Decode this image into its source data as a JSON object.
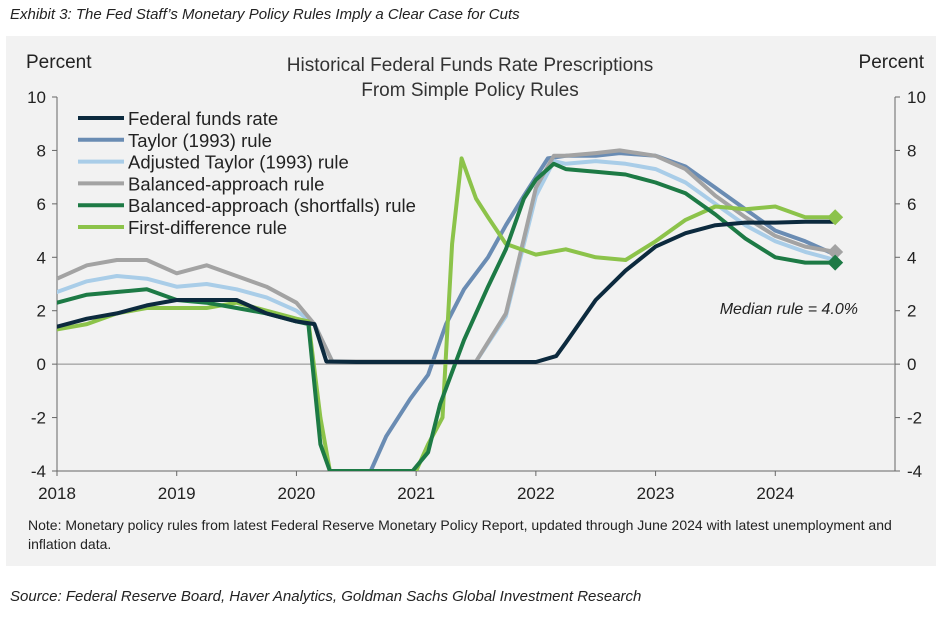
{
  "exhibit_title": "Exhibit 3: The Fed Staff’s Monetary Policy Rules Imply a Clear Case for Cuts",
  "source_text": "Source: Federal Reserve Board, Haver Analytics, Goldman Sachs Global Investment Research",
  "colors": {
    "panel_bg": "#f2f2f2",
    "ffr": "#0c2a3e",
    "taylor": "#6a8cb3",
    "adjusted_taylor": "#a9cde8",
    "balanced": "#a3a3a3",
    "balanced_shortfalls": "#1d7a45",
    "first_difference": "#8cc34a"
  },
  "chart_data": {
    "type": "line",
    "title": "Historical Federal Funds Rate Prescriptions",
    "subtitle": "From Simple Policy Rules",
    "ylabel_left": "Percent",
    "ylabel_right": "Percent",
    "xlim": [
      2018,
      2025
    ],
    "ylim": [
      -4,
      10
    ],
    "x_ticks": [
      "2018",
      "2019",
      "2020",
      "2021",
      "2022",
      "2023",
      "2024"
    ],
    "y_ticks": [
      "10",
      "8",
      "6",
      "4",
      "2",
      "0",
      "-2",
      "-4"
    ],
    "annotation": "Median rule = 4.0%",
    "note": "Note: Monetary policy rules from latest Federal Reserve Monetary Policy Report, updated through June 2024 with latest unemployment and inflation data.",
    "legend_position": "top-left",
    "series": [
      {
        "key": "ffr",
        "name": "Federal funds rate",
        "color": "#0c2a3e",
        "points": [
          [
            2018.0,
            1.4
          ],
          [
            2018.25,
            1.7
          ],
          [
            2018.5,
            1.9
          ],
          [
            2018.75,
            2.2
          ],
          [
            2019.0,
            2.4
          ],
          [
            2019.25,
            2.4
          ],
          [
            2019.5,
            2.4
          ],
          [
            2019.75,
            1.9
          ],
          [
            2020.0,
            1.6
          ],
          [
            2020.15,
            1.5
          ],
          [
            2020.25,
            0.1
          ],
          [
            2020.5,
            0.08
          ],
          [
            2021.0,
            0.08
          ],
          [
            2021.5,
            0.08
          ],
          [
            2022.0,
            0.08
          ],
          [
            2022.17,
            0.3
          ],
          [
            2022.25,
            0.8
          ],
          [
            2022.5,
            2.4
          ],
          [
            2022.75,
            3.5
          ],
          [
            2023.0,
            4.4
          ],
          [
            2023.25,
            4.9
          ],
          [
            2023.5,
            5.2
          ],
          [
            2023.75,
            5.3
          ],
          [
            2024.0,
            5.3
          ],
          [
            2024.25,
            5.33
          ],
          [
            2024.5,
            5.33
          ]
        ]
      },
      {
        "key": "taylor",
        "name": "Taylor (1993) rule",
        "color": "#6a8cb3",
        "points": [
          [
            2020.62,
            -4.0
          ],
          [
            2020.75,
            -2.7
          ],
          [
            2020.95,
            -1.3
          ],
          [
            2021.1,
            -0.4
          ],
          [
            2021.25,
            1.5
          ],
          [
            2021.4,
            2.8
          ],
          [
            2021.6,
            4.0
          ],
          [
            2021.75,
            5.2
          ],
          [
            2021.9,
            6.3
          ],
          [
            2022.0,
            7.0
          ],
          [
            2022.1,
            7.7
          ],
          [
            2022.25,
            7.8
          ],
          [
            2022.5,
            7.8
          ],
          [
            2022.7,
            7.9
          ],
          [
            2023.0,
            7.8
          ],
          [
            2023.25,
            7.4
          ],
          [
            2023.5,
            6.6
          ],
          [
            2023.75,
            5.8
          ],
          [
            2024.0,
            5.0
          ],
          [
            2024.25,
            4.6
          ],
          [
            2024.5,
            4.1
          ]
        ]
      },
      {
        "key": "adjusted_taylor",
        "name": "Adjusted Taylor (1993) rule",
        "color": "#a9cde8",
        "points": [
          [
            2018.0,
            2.7
          ],
          [
            2018.25,
            3.1
          ],
          [
            2018.5,
            3.3
          ],
          [
            2018.75,
            3.2
          ],
          [
            2019.0,
            2.9
          ],
          [
            2019.25,
            3.0
          ],
          [
            2019.5,
            2.8
          ],
          [
            2019.75,
            2.5
          ],
          [
            2020.0,
            2.0
          ],
          [
            2020.15,
            1.5
          ],
          [
            2020.3,
            0.1
          ],
          [
            2021.0,
            0.1
          ],
          [
            2021.5,
            0.1
          ],
          [
            2021.75,
            1.8
          ],
          [
            2021.9,
            4.5
          ],
          [
            2022.0,
            6.3
          ],
          [
            2022.15,
            7.6
          ],
          [
            2022.25,
            7.5
          ],
          [
            2022.5,
            7.6
          ],
          [
            2022.75,
            7.5
          ],
          [
            2023.0,
            7.3
          ],
          [
            2023.25,
            6.8
          ],
          [
            2023.5,
            6.0
          ],
          [
            2023.75,
            5.2
          ],
          [
            2024.0,
            4.6
          ],
          [
            2024.25,
            4.2
          ],
          [
            2024.5,
            3.9
          ]
        ]
      },
      {
        "key": "balanced",
        "name": "Balanced-approach rule",
        "color": "#a3a3a3",
        "points": [
          [
            2018.0,
            3.2
          ],
          [
            2018.25,
            3.7
          ],
          [
            2018.5,
            3.9
          ],
          [
            2018.75,
            3.9
          ],
          [
            2019.0,
            3.4
          ],
          [
            2019.25,
            3.7
          ],
          [
            2019.5,
            3.3
          ],
          [
            2019.75,
            2.9
          ],
          [
            2020.0,
            2.3
          ],
          [
            2020.15,
            1.5
          ],
          [
            2020.3,
            0.1
          ],
          [
            2021.0,
            0.1
          ],
          [
            2021.5,
            0.1
          ],
          [
            2021.75,
            1.9
          ],
          [
            2021.9,
            4.7
          ],
          [
            2022.0,
            6.6
          ],
          [
            2022.15,
            7.8
          ],
          [
            2022.25,
            7.8
          ],
          [
            2022.5,
            7.9
          ],
          [
            2022.7,
            8.0
          ],
          [
            2023.0,
            7.8
          ],
          [
            2023.25,
            7.3
          ],
          [
            2023.5,
            6.3
          ],
          [
            2023.75,
            5.5
          ],
          [
            2024.0,
            4.8
          ],
          [
            2024.25,
            4.4
          ],
          [
            2024.5,
            4.2
          ]
        ]
      },
      {
        "key": "balanced_shortfalls",
        "name": "Balanced-approach (shortfalls) rule",
        "color": "#1d7a45",
        "points": [
          [
            2018.0,
            2.3
          ],
          [
            2018.25,
            2.6
          ],
          [
            2018.5,
            2.7
          ],
          [
            2018.75,
            2.8
          ],
          [
            2019.0,
            2.4
          ],
          [
            2019.25,
            2.3
          ],
          [
            2019.5,
            2.1
          ],
          [
            2019.75,
            1.9
          ],
          [
            2020.0,
            1.6
          ],
          [
            2020.1,
            1.5
          ],
          [
            2020.2,
            -3.0
          ],
          [
            2020.28,
            -4.0
          ],
          [
            2020.97,
            -4.0
          ],
          [
            2021.1,
            -3.3
          ],
          [
            2021.2,
            -1.5
          ],
          [
            2021.4,
            0.9
          ],
          [
            2021.6,
            2.9
          ],
          [
            2021.75,
            4.3
          ],
          [
            2021.9,
            6.2
          ],
          [
            2022.0,
            6.9
          ],
          [
            2022.15,
            7.5
          ],
          [
            2022.25,
            7.3
          ],
          [
            2022.5,
            7.2
          ],
          [
            2022.75,
            7.1
          ],
          [
            2023.0,
            6.8
          ],
          [
            2023.25,
            6.4
          ],
          [
            2023.5,
            5.6
          ],
          [
            2023.75,
            4.7
          ],
          [
            2024.0,
            4.0
          ],
          [
            2024.25,
            3.8
          ],
          [
            2024.5,
            3.8
          ]
        ]
      },
      {
        "key": "first_difference",
        "name": "First-difference rule",
        "color": "#8cc34a",
        "points": [
          [
            2018.0,
            1.3
          ],
          [
            2018.25,
            1.5
          ],
          [
            2018.5,
            1.9
          ],
          [
            2018.75,
            2.1
          ],
          [
            2019.0,
            2.1
          ],
          [
            2019.25,
            2.1
          ],
          [
            2019.5,
            2.3
          ],
          [
            2019.75,
            2.0
          ],
          [
            2020.0,
            1.7
          ],
          [
            2020.1,
            1.6
          ],
          [
            2020.2,
            -2.0
          ],
          [
            2020.28,
            -4.0
          ],
          [
            2021.0,
            -4.0
          ],
          [
            2021.1,
            -3.0
          ],
          [
            2021.22,
            -2.0
          ],
          [
            2021.3,
            4.5
          ],
          [
            2021.38,
            7.7
          ],
          [
            2021.5,
            6.2
          ],
          [
            2021.6,
            5.5
          ],
          [
            2021.75,
            4.5
          ],
          [
            2022.0,
            4.1
          ],
          [
            2022.25,
            4.3
          ],
          [
            2022.5,
            4.0
          ],
          [
            2022.75,
            3.9
          ],
          [
            2023.0,
            4.6
          ],
          [
            2023.25,
            5.4
          ],
          [
            2023.5,
            5.9
          ],
          [
            2023.75,
            5.8
          ],
          [
            2024.0,
            5.9
          ],
          [
            2024.25,
            5.5
          ],
          [
            2024.5,
            5.5
          ]
        ]
      }
    ],
    "end_markers": [
      {
        "key": "balanced",
        "x": 2024.5,
        "y": 4.2,
        "color": "#a3a3a3"
      },
      {
        "key": "first_difference",
        "x": 2024.5,
        "y": 5.5,
        "color": "#8cc34a"
      },
      {
        "key": "balanced_shortfalls",
        "x": 2024.5,
        "y": 3.8,
        "color": "#1d7a45"
      }
    ]
  }
}
